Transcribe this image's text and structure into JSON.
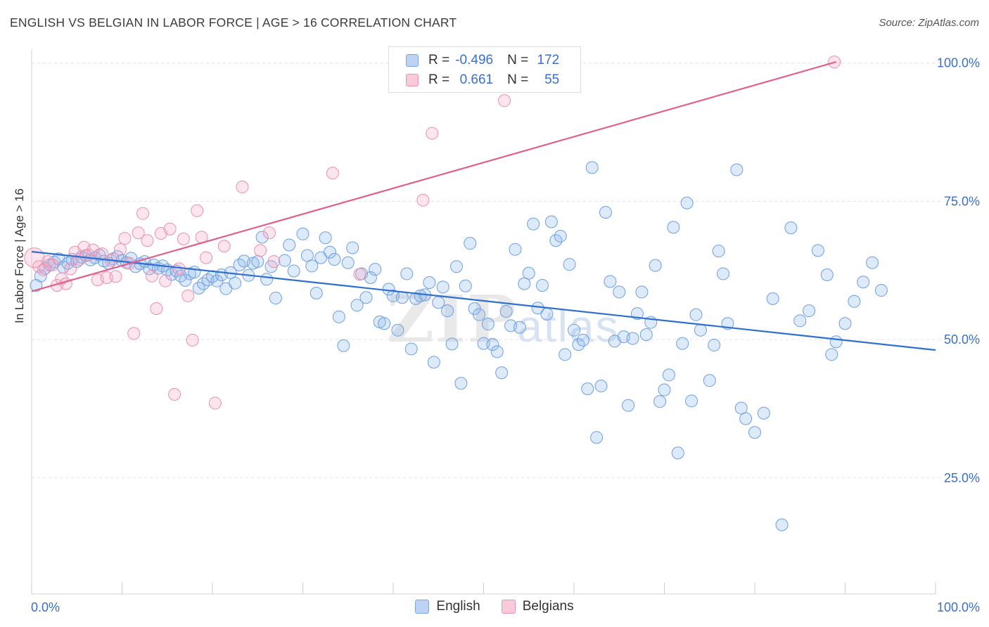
{
  "title": "ENGLISH VS BELGIAN IN LABOR FORCE | AGE > 16 CORRELATION CHART",
  "source": "Source: ZipAtlas.com",
  "watermark": {
    "main": "ZIP",
    "sub": "atlas"
  },
  "legend": {
    "rows": [
      {
        "r_label": "R =",
        "r_value": "-0.496",
        "n_label": "N =",
        "n_value": "172",
        "color": "#8fb8ee"
      },
      {
        "r_label": "R =",
        "r_value": "0.661",
        "n_label": "N =",
        "n_value": "55",
        "color": "#f4a9c0"
      }
    ]
  },
  "bottom_legend": [
    {
      "label": "English",
      "color": "#8fb8ee"
    },
    {
      "label": "Belgians",
      "color": "#f4a9c0"
    }
  ],
  "chart_data": {
    "type": "scatter",
    "title": "ENGLISH VS BELGIAN IN LABOR FORCE | AGE > 16 CORRELATION CHART",
    "xlabel": "",
    "ylabel": "In Labor Force | Age > 16",
    "xlim": [
      0,
      100
    ],
    "ylim": [
      4,
      102.5
    ],
    "x_tick_labels": [
      {
        "value": 0,
        "label": "0.0%"
      },
      {
        "value": 100,
        "label": "100.0%"
      }
    ],
    "y_tick_labels": [
      {
        "value": 25,
        "label": "25.0%"
      },
      {
        "value": 50,
        "label": "50.0%"
      },
      {
        "value": 75,
        "label": "75.0%"
      },
      {
        "value": 100,
        "label": "100.0%"
      }
    ],
    "grid": true,
    "legend_position": "top-center",
    "series": [
      {
        "name": "English",
        "color": "#8fb8ee",
        "trend": {
          "x": [
            0,
            100
          ],
          "y": [
            65.9,
            48.1
          ],
          "color": "#2f6fd0"
        },
        "points": [
          [
            0.5,
            59.8
          ],
          [
            1,
            61.5
          ],
          [
            1.5,
            62.9
          ],
          [
            2,
            63.5
          ],
          [
            2.5,
            64
          ],
          [
            3,
            64.6
          ],
          [
            3.5,
            63.1
          ],
          [
            4,
            63.8
          ],
          [
            4.5,
            64.5
          ],
          [
            5,
            64.1
          ],
          [
            5.5,
            64.9
          ],
          [
            6,
            65.2
          ],
          [
            6.5,
            64.4
          ],
          [
            7,
            64.8
          ],
          [
            7.5,
            65.3
          ],
          [
            8,
            64.2
          ],
          [
            8.5,
            63.8
          ],
          [
            9,
            64.6
          ],
          [
            9.5,
            65
          ],
          [
            10,
            64.3
          ],
          [
            10.5,
            63.9
          ],
          [
            11,
            64.7
          ],
          [
            11.5,
            63.2
          ],
          [
            12,
            63.7
          ],
          [
            12.5,
            64.1
          ],
          [
            13,
            62.8
          ],
          [
            13.5,
            63.5
          ],
          [
            14,
            62.9
          ],
          [
            14.5,
            63.3
          ],
          [
            15,
            62.6
          ],
          [
            15.5,
            61.8
          ],
          [
            16,
            62.4
          ],
          [
            16.5,
            61.5
          ],
          [
            17,
            60.7
          ],
          [
            17.5,
            61.9
          ],
          [
            18,
            62.2
          ],
          [
            18.5,
            59.3
          ],
          [
            19,
            60.1
          ],
          [
            19.5,
            60.8
          ],
          [
            20,
            61.4
          ],
          [
            20.5,
            60.6
          ],
          [
            21,
            61.7
          ],
          [
            21.5,
            59.2
          ],
          [
            22,
            62.1
          ],
          [
            22.5,
            60.2
          ],
          [
            23,
            63.5
          ],
          [
            23.5,
            64.2
          ],
          [
            24,
            61.6
          ],
          [
            24.5,
            63.8
          ],
          [
            25,
            64.1
          ],
          [
            25.5,
            68.5
          ],
          [
            26,
            60.9
          ],
          [
            26.5,
            63.2
          ],
          [
            27,
            57.5
          ],
          [
            28,
            64.3
          ],
          [
            28.5,
            67.1
          ],
          [
            29,
            62.4
          ],
          [
            30,
            69.1
          ],
          [
            30.5,
            65.2
          ],
          [
            31,
            63.3
          ],
          [
            31.5,
            58.4
          ],
          [
            32,
            64.8
          ],
          [
            32.5,
            68.4
          ],
          [
            33,
            65.8
          ],
          [
            33.5,
            64.5
          ],
          [
            34,
            54.1
          ],
          [
            34.5,
            48.9
          ],
          [
            35,
            63.9
          ],
          [
            35.5,
            66.6
          ],
          [
            36,
            56.2
          ],
          [
            36.5,
            61.9
          ],
          [
            37,
            57.6
          ],
          [
            37.5,
            61.2
          ],
          [
            38,
            62.7
          ],
          [
            38.5,
            53.2
          ],
          [
            39,
            52.9
          ],
          [
            39.5,
            59.1
          ],
          [
            40,
            57.9
          ],
          [
            40.5,
            51.7
          ],
          [
            41,
            57.6
          ],
          [
            41.5,
            61.9
          ],
          [
            42,
            48.3
          ],
          [
            42.5,
            57.4
          ],
          [
            43,
            57.9
          ],
          [
            43.5,
            58.1
          ],
          [
            44,
            60.3
          ],
          [
            44.5,
            45.9
          ],
          [
            45,
            56.7
          ],
          [
            45.5,
            59.5
          ],
          [
            46,
            55.2
          ],
          [
            46.5,
            49.2
          ],
          [
            47,
            63.2
          ],
          [
            47.5,
            42.1
          ],
          [
            48,
            59.7
          ],
          [
            48.5,
            67.4
          ],
          [
            49,
            55.6
          ],
          [
            49.5,
            54.5
          ],
          [
            50,
            49.3
          ],
          [
            50.5,
            52.8
          ],
          [
            51,
            49.1
          ],
          [
            51.5,
            47.8
          ],
          [
            52,
            44
          ],
          [
            52.5,
            55.1
          ],
          [
            53,
            52.5
          ],
          [
            53.5,
            66.3
          ],
          [
            54,
            52.2
          ],
          [
            54.5,
            60.1
          ],
          [
            55,
            62
          ],
          [
            55.5,
            70.9
          ],
          [
            56,
            55.7
          ],
          [
            56.5,
            59.8
          ],
          [
            57,
            54.6
          ],
          [
            57.5,
            71.3
          ],
          [
            58,
            67.9
          ],
          [
            58.5,
            68.7
          ],
          [
            59,
            47.3
          ],
          [
            59.5,
            63.6
          ],
          [
            60,
            51.7
          ],
          [
            60.5,
            49.1
          ],
          [
            61,
            49.9
          ],
          [
            61.5,
            41.1
          ],
          [
            62,
            81.1
          ],
          [
            62.5,
            32.3
          ],
          [
            63,
            41.6
          ],
          [
            63.5,
            73
          ],
          [
            64,
            60.5
          ],
          [
            64.5,
            49.7
          ],
          [
            65,
            58.6
          ],
          [
            65.5,
            50.5
          ],
          [
            66,
            38.1
          ],
          [
            66.5,
            50.2
          ],
          [
            67,
            54.7
          ],
          [
            67.5,
            58.6
          ],
          [
            68,
            50.9
          ],
          [
            68.5,
            53.1
          ],
          [
            69,
            63.4
          ],
          [
            69.5,
            38.8
          ],
          [
            70,
            40.9
          ],
          [
            70.5,
            43.6
          ],
          [
            71,
            70.3
          ],
          [
            71.5,
            29.5
          ],
          [
            72,
            49.3
          ],
          [
            72.5,
            74.7
          ],
          [
            73,
            38.9
          ],
          [
            73.5,
            54.5
          ],
          [
            74,
            51.7
          ],
          [
            75,
            42.6
          ],
          [
            75.5,
            49
          ],
          [
            76,
            66
          ],
          [
            76.5,
            61.9
          ],
          [
            77,
            52.9
          ],
          [
            78,
            80.7
          ],
          [
            78.5,
            37.6
          ],
          [
            79,
            35.7
          ],
          [
            80,
            33.2
          ],
          [
            81,
            36.7
          ],
          [
            82,
            57.4
          ],
          [
            83,
            16.5
          ],
          [
            84,
            70.2
          ],
          [
            85,
            53.4
          ],
          [
            86,
            55.2
          ],
          [
            87,
            66.1
          ],
          [
            88,
            61.7
          ],
          [
            88.5,
            47.3
          ],
          [
            89,
            49.6
          ],
          [
            90,
            52.9
          ],
          [
            91,
            56.9
          ],
          [
            92,
            60.4
          ],
          [
            93,
            63.9
          ],
          [
            94,
            58.9
          ]
        ]
      },
      {
        "name": "Belgians",
        "color": "#f4a9c0",
        "trend": {
          "x": [
            0,
            89
          ],
          "y": [
            58.7,
            100.2
          ],
          "color": "#e0608e"
        },
        "points": [
          [
            0.3,
            64.8
          ],
          [
            0.8,
            63.2
          ],
          [
            1.3,
            62.6
          ],
          [
            1.8,
            64.1
          ],
          [
            2.3,
            63.5
          ],
          [
            2.8,
            59.8
          ],
          [
            3.3,
            61
          ],
          [
            3.8,
            60.1
          ],
          [
            4.3,
            62.8
          ],
          [
            4.8,
            65.8
          ],
          [
            5.3,
            64.5
          ],
          [
            5.8,
            66.7
          ],
          [
            6.3,
            65.3
          ],
          [
            6.8,
            66.2
          ],
          [
            7.3,
            60.8
          ],
          [
            7.8,
            65.5
          ],
          [
            8.3,
            61.2
          ],
          [
            8.8,
            64.3
          ],
          [
            9.3,
            61.4
          ],
          [
            9.8,
            66.3
          ],
          [
            10.3,
            68.3
          ],
          [
            10.8,
            63.8
          ],
          [
            11.3,
            51.1
          ],
          [
            11.8,
            69.3
          ],
          [
            12.3,
            72.8
          ],
          [
            12.8,
            67.9
          ],
          [
            13.3,
            61.5
          ],
          [
            13.8,
            55.6
          ],
          [
            14.3,
            69.2
          ],
          [
            14.8,
            60.6
          ],
          [
            15.3,
            70
          ],
          [
            15.8,
            40.1
          ],
          [
            16.3,
            62.8
          ],
          [
            16.8,
            68.2
          ],
          [
            17.3,
            57.9
          ],
          [
            17.8,
            49.9
          ],
          [
            18.3,
            73.3
          ],
          [
            18.8,
            68.5
          ],
          [
            19.3,
            64.8
          ],
          [
            20.3,
            38.5
          ],
          [
            21.3,
            66.9
          ],
          [
            23.3,
            77.6
          ],
          [
            25.3,
            66.1
          ],
          [
            26.3,
            69.3
          ],
          [
            26.8,
            64.1
          ],
          [
            33.3,
            80.1
          ],
          [
            36.3,
            61.8
          ],
          [
            43.3,
            75.2
          ],
          [
            44.3,
            87.3
          ],
          [
            50.3,
            100.2
          ],
          [
            52.3,
            93.2
          ],
          [
            88.8,
            100.2
          ]
        ]
      }
    ]
  }
}
